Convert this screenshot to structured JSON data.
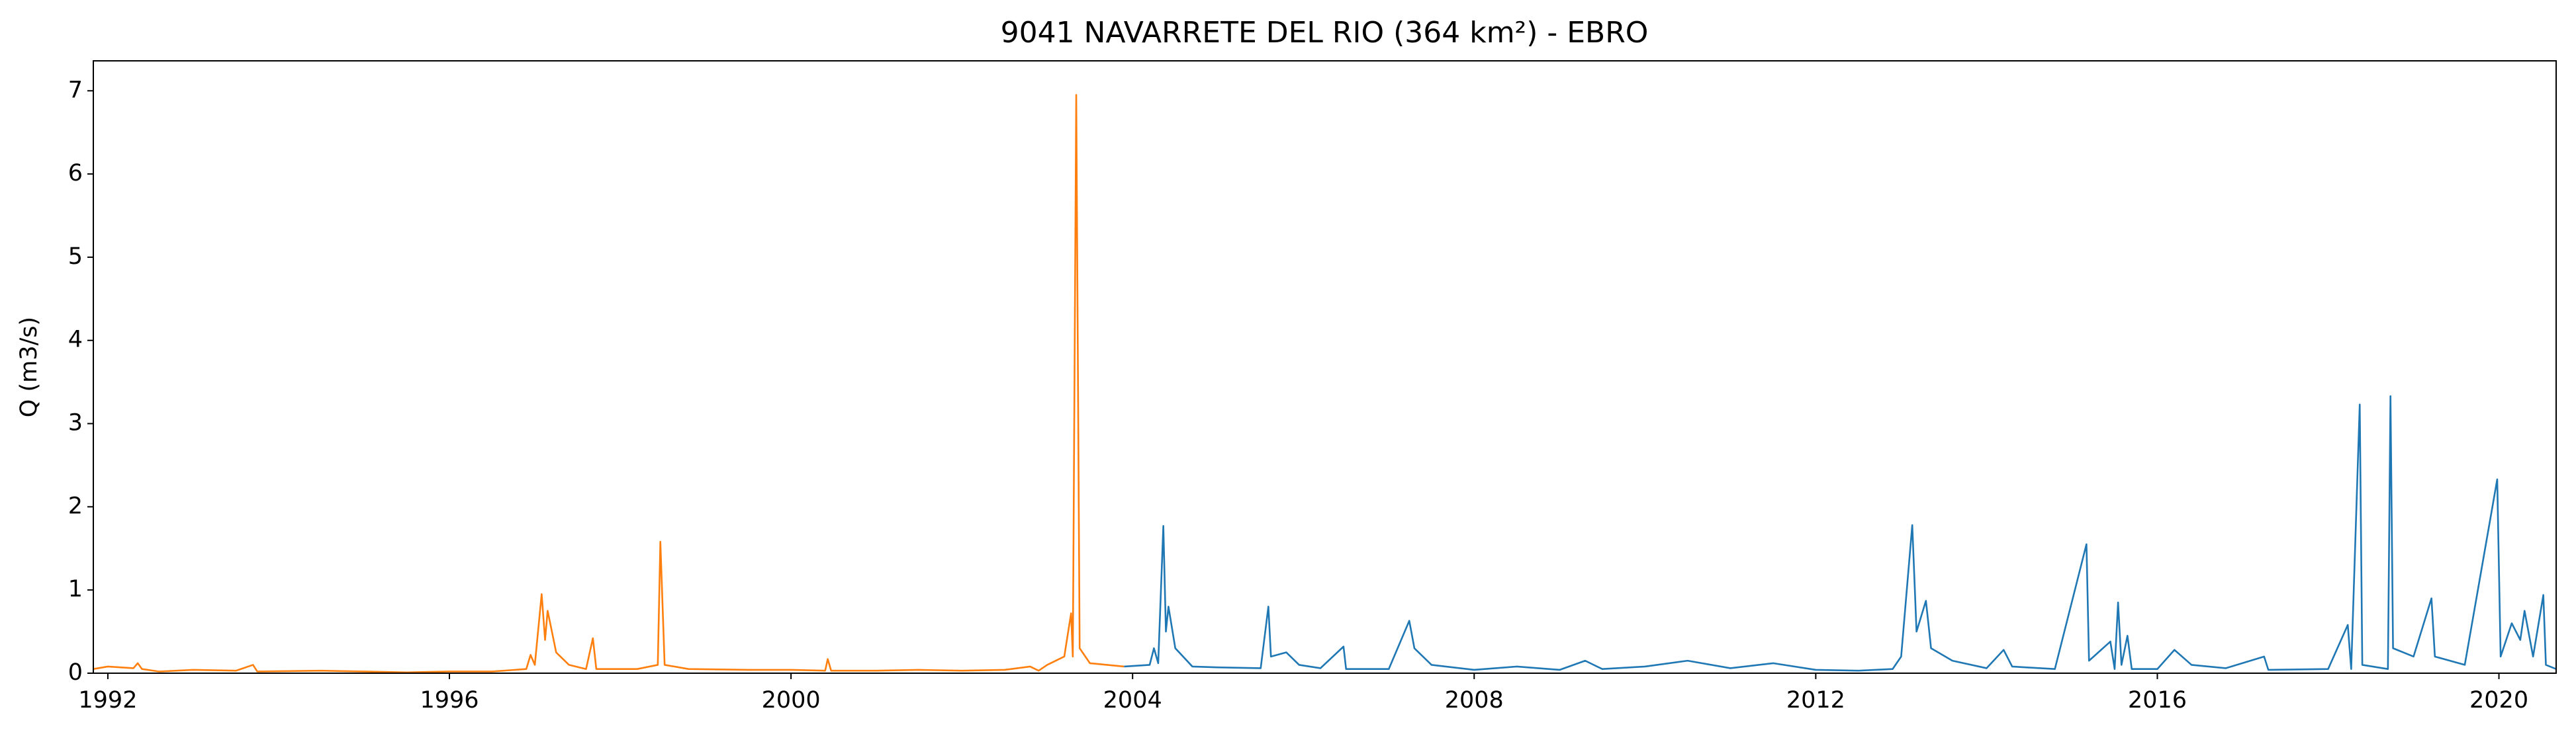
{
  "chart_data": {
    "type": "line",
    "title": "9041 NAVARRETE DEL RIO (364 km²) - EBRO",
    "ylabel": "Q (m3/s)",
    "xlim": [
      1991.83,
      2020.67
    ],
    "ylim": [
      0,
      7.36
    ],
    "xticks": [
      1992,
      1996,
      2000,
      2004,
      2008,
      2012,
      2016,
      2020
    ],
    "yticks": [
      0,
      1,
      2,
      3,
      4,
      5,
      6,
      7
    ],
    "series": [
      {
        "color": "#ff7f0e",
        "x": [
          1991.83,
          1992.0,
          1992.3,
          1992.35,
          1992.4,
          1992.6,
          1993.0,
          1993.5,
          1993.7,
          1993.75,
          1994.5,
          1995.0,
          1995.5,
          1996.0,
          1996.5,
          1996.9,
          1996.95,
          1997.0,
          1997.08,
          1997.12,
          1997.15,
          1997.25,
          1997.4,
          1997.6,
          1997.68,
          1997.72,
          1998.2,
          1998.44,
          1998.47,
          1998.52,
          1998.8,
          1999.5,
          2000.0,
          2000.4,
          2000.43,
          2000.47,
          2001.0,
          2001.5,
          2002.0,
          2002.5,
          2002.8,
          2002.9,
          2003.0,
          2003.2,
          2003.28,
          2003.3,
          2003.34,
          2003.38,
          2003.5,
          2003.9
        ],
        "values": [
          0.05,
          0.08,
          0.06,
          0.12,
          0.05,
          0.02,
          0.04,
          0.03,
          0.1,
          0.02,
          0.03,
          0.02,
          0.01,
          0.02,
          0.02,
          0.05,
          0.22,
          0.1,
          0.95,
          0.4,
          0.75,
          0.25,
          0.1,
          0.05,
          0.42,
          0.05,
          0.05,
          0.1,
          1.58,
          0.1,
          0.05,
          0.04,
          0.04,
          0.03,
          0.17,
          0.03,
          0.03,
          0.04,
          0.03,
          0.04,
          0.08,
          0.03,
          0.1,
          0.2,
          0.72,
          0.2,
          6.95,
          0.3,
          0.12,
          0.08
        ]
      },
      {
        "color": "#1f77b4",
        "x": [
          2003.9,
          2004.2,
          2004.25,
          2004.3,
          2004.36,
          2004.39,
          2004.42,
          2004.5,
          2004.7,
          2005.0,
          2005.5,
          2005.59,
          2005.62,
          2005.8,
          2005.95,
          2006.2,
          2006.47,
          2006.5,
          2007.0,
          2007.24,
          2007.3,
          2007.5,
          2008.0,
          2008.5,
          2009.0,
          2009.3,
          2009.5,
          2010.0,
          2010.5,
          2011.0,
          2011.5,
          2012.0,
          2012.5,
          2012.9,
          2013.0,
          2013.13,
          2013.18,
          2013.29,
          2013.35,
          2013.6,
          2014.0,
          2014.2,
          2014.3,
          2014.8,
          2015.17,
          2015.2,
          2015.45,
          2015.5,
          2015.54,
          2015.58,
          2015.65,
          2015.7,
          2016.0,
          2016.2,
          2016.4,
          2016.8,
          2017.25,
          2017.3,
          2018.0,
          2018.23,
          2018.27,
          2018.37,
          2018.4,
          2018.7,
          2018.73,
          2018.76,
          2019.0,
          2019.21,
          2019.25,
          2019.6,
          2019.98,
          2020.02,
          2020.15,
          2020.25,
          2020.3,
          2020.4,
          2020.52,
          2020.55,
          2020.67
        ],
        "values": [
          0.08,
          0.1,
          0.3,
          0.12,
          1.77,
          0.5,
          0.8,
          0.3,
          0.08,
          0.07,
          0.06,
          0.8,
          0.2,
          0.25,
          0.1,
          0.06,
          0.32,
          0.05,
          0.05,
          0.63,
          0.3,
          0.1,
          0.04,
          0.08,
          0.04,
          0.15,
          0.05,
          0.08,
          0.15,
          0.06,
          0.12,
          0.04,
          0.03,
          0.05,
          0.2,
          1.78,
          0.5,
          0.87,
          0.3,
          0.15,
          0.06,
          0.28,
          0.08,
          0.05,
          1.55,
          0.15,
          0.38,
          0.05,
          0.85,
          0.1,
          0.45,
          0.05,
          0.05,
          0.28,
          0.1,
          0.06,
          0.2,
          0.04,
          0.05,
          0.58,
          0.05,
          3.23,
          0.1,
          0.05,
          3.33,
          0.3,
          0.2,
          0.9,
          0.2,
          0.1,
          2.33,
          0.2,
          0.6,
          0.4,
          0.75,
          0.2,
          0.94,
          0.1,
          0.05
        ]
      }
    ]
  }
}
